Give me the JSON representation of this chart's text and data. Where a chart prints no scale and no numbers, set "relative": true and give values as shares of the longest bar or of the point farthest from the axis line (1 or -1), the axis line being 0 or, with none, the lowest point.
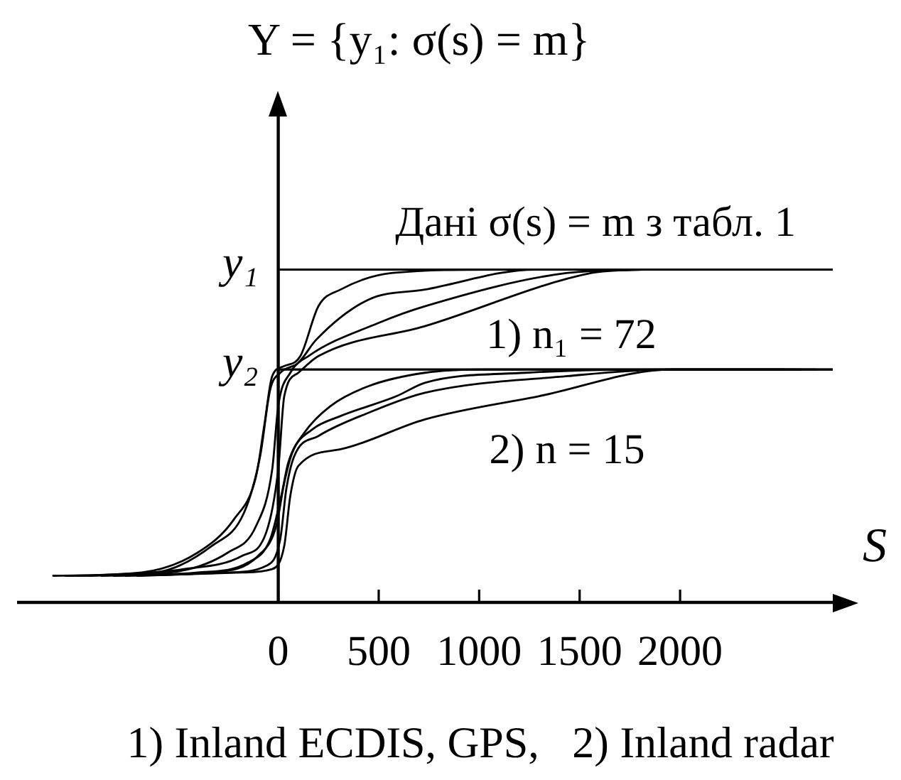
{
  "chart_data": {
    "type": "line",
    "ylabel": "Y = {y₁: σ(s) = m}",
    "xlabel": "S",
    "relative": true,
    "xlim": [
      -1300,
      2760
    ],
    "xticks": [
      0,
      500,
      1000,
      1500,
      2000
    ],
    "marker": "none",
    "line_style": "solid",
    "ref_lines": [
      {
        "axis": "y",
        "value": 1.0,
        "label": "y₁"
      },
      {
        "axis": "y",
        "value": 0.7,
        "label": "y₂"
      }
    ],
    "annotations": [
      "Дані σ(s) = m з табл. 1",
      "1) n₁ = 72",
      "2) n = 15",
      "1) Inland ECDIS, GPS,   2) Inland radar"
    ],
    "series": [
      {
        "color": "#000000",
        "x": [
          -1120,
          -680,
          -400,
          -220,
          -110,
          -70,
          -30,
          30,
          110,
          200,
          310,
          570,
          1090,
          1940
        ],
        "values": [
          0.08,
          0.09,
          0.15,
          0.25,
          0.38,
          0.53,
          0.68,
          0.71,
          0.74,
          0.89,
          0.94,
          0.99,
          1.0,
          1.0
        ]
      },
      {
        "color": "#000000",
        "x": [
          -1060,
          -610,
          -330,
          -170,
          -90,
          -40,
          10,
          100,
          190,
          450,
          730,
          1280,
          1880
        ],
        "values": [
          0.08,
          0.09,
          0.17,
          0.27,
          0.44,
          0.64,
          0.69,
          0.72,
          0.79,
          0.91,
          0.94,
          1.0,
          1.0
        ]
      },
      {
        "color": "#000000",
        "x": [
          -1000,
          -540,
          -250,
          -110,
          -30,
          0,
          60,
          150,
          500,
          730,
          1440,
          1820
        ],
        "values": [
          0.08,
          0.09,
          0.15,
          0.23,
          0.4,
          0.59,
          0.69,
          0.74,
          0.84,
          0.89,
          0.99,
          1.0
        ]
      },
      {
        "color": "#000000",
        "x": [
          -940,
          -470,
          -180,
          -60,
          0,
          30,
          100,
          200,
          730,
          1560,
          1760
        ],
        "values": [
          0.08,
          0.1,
          0.14,
          0.21,
          0.4,
          0.62,
          0.69,
          0.74,
          0.83,
          0.99,
          1.0
        ]
      },
      {
        "color": "#000000",
        "x": [
          -880,
          -400,
          -150,
          -40,
          15,
          50,
          130,
          260,
          450,
          730,
          1020,
          1940,
          2760
        ],
        "values": [
          0.08,
          0.09,
          0.12,
          0.19,
          0.32,
          0.42,
          0.51,
          0.59,
          0.65,
          0.69,
          0.7,
          0.7,
          0.7
        ]
      },
      {
        "color": "#000000",
        "x": [
          -820,
          -330,
          -100,
          -10,
          30,
          70,
          170,
          310,
          590,
          730,
          1230,
          1940,
          2680
        ],
        "values": [
          0.08,
          0.09,
          0.14,
          0.23,
          0.36,
          0.45,
          0.52,
          0.56,
          0.62,
          0.66,
          0.69,
          0.7,
          0.7
        ]
      },
      {
        "color": "#000000",
        "x": [
          -760,
          -250,
          -60,
          10,
          40,
          80,
          200,
          450,
          730,
          1440,
          1940,
          2600
        ],
        "values": [
          0.08,
          0.09,
          0.11,
          0.19,
          0.34,
          0.44,
          0.5,
          0.57,
          0.63,
          0.68,
          0.7,
          0.7
        ]
      },
      {
        "color": "#000000",
        "x": [
          -700,
          -180,
          -30,
          30,
          60,
          100,
          310,
          730,
          1300,
          1960,
          2520
        ],
        "values": [
          0.08,
          0.09,
          0.1,
          0.17,
          0.32,
          0.41,
          0.46,
          0.55,
          0.62,
          0.7,
          0.7
        ]
      }
    ]
  }
}
